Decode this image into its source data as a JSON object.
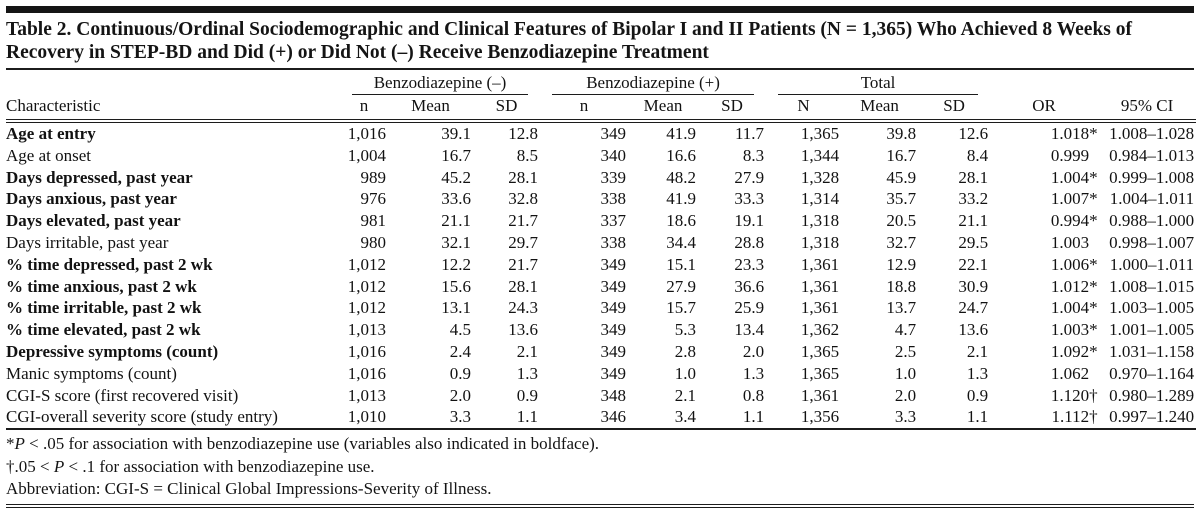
{
  "title": "Table 2. Continuous/Ordinal Sociodemographic and Clinical Features of Bipolar I and II Patients (N = 1,365) Who Achieved 8 Weeks of Recovery in STEP-BD and Did (+) or Did Not (–) Receive Benzodiazepine Treatment",
  "table": {
    "groups": [
      {
        "label": "Benzodiazepine (–)"
      },
      {
        "label": "Benzodiazepine (+)"
      },
      {
        "label": "Total"
      }
    ],
    "columns": [
      "Characteristic",
      "n",
      "Mean",
      "SD",
      "n",
      "Mean",
      "SD",
      "N",
      "Mean",
      "SD",
      "OR",
      "95% CI"
    ],
    "rows": [
      {
        "label": "Age at entry",
        "bold": true,
        "values": [
          "1,016",
          "39.1",
          "12.8",
          "349",
          "41.9",
          "11.7",
          "1,365",
          "39.8",
          "12.6"
        ],
        "or": "1.018",
        "or_mark": "*",
        "ci": "1.008–1.028"
      },
      {
        "label": "Age at onset",
        "bold": false,
        "values": [
          "1,004",
          "16.7",
          "8.5",
          "340",
          "16.6",
          "8.3",
          "1,344",
          "16.7",
          "8.4"
        ],
        "or": "0.999",
        "or_mark": "",
        "ci": "0.984–1.013"
      },
      {
        "label": "Days depressed, past year",
        "bold": true,
        "values": [
          "989",
          "45.2",
          "28.1",
          "339",
          "48.2",
          "27.9",
          "1,328",
          "45.9",
          "28.1"
        ],
        "or": "1.004",
        "or_mark": "*",
        "ci": "0.999–1.008"
      },
      {
        "label": "Days anxious, past year",
        "bold": true,
        "values": [
          "976",
          "33.6",
          "32.8",
          "338",
          "41.9",
          "33.3",
          "1,314",
          "35.7",
          "33.2"
        ],
        "or": "1.007",
        "or_mark": "*",
        "ci": "1.004–1.011"
      },
      {
        "label": "Days elevated, past year",
        "bold": true,
        "values": [
          "981",
          "21.1",
          "21.7",
          "337",
          "18.6",
          "19.1",
          "1,318",
          "20.5",
          "21.1"
        ],
        "or": "0.994",
        "or_mark": "*",
        "ci": "0.988–1.000"
      },
      {
        "label": "Days irritable, past year",
        "bold": false,
        "values": [
          "980",
          "32.1",
          "29.7",
          "338",
          "34.4",
          "28.8",
          "1,318",
          "32.7",
          "29.5"
        ],
        "or": "1.003",
        "or_mark": "",
        "ci": "0.998–1.007"
      },
      {
        "label": "% time depressed, past 2 wk",
        "bold": true,
        "values": [
          "1,012",
          "12.2",
          "21.7",
          "349",
          "15.1",
          "23.3",
          "1,361",
          "12.9",
          "22.1"
        ],
        "or": "1.006",
        "or_mark": "*",
        "ci": "1.000–1.011"
      },
      {
        "label": "% time anxious, past 2 wk",
        "bold": true,
        "values": [
          "1,012",
          "15.6",
          "28.1",
          "349",
          "27.9",
          "36.6",
          "1,361",
          "18.8",
          "30.9"
        ],
        "or": "1.012",
        "or_mark": "*",
        "ci": "1.008–1.015"
      },
      {
        "label": "% time irritable, past 2 wk",
        "bold": true,
        "values": [
          "1,012",
          "13.1",
          "24.3",
          "349",
          "15.7",
          "25.9",
          "1,361",
          "13.7",
          "24.7"
        ],
        "or": "1.004",
        "or_mark": "*",
        "ci": "1.003–1.005"
      },
      {
        "label": "% time elevated, past 2 wk",
        "bold": true,
        "values": [
          "1,013",
          "4.5",
          "13.6",
          "349",
          "5.3",
          "13.4",
          "1,362",
          "4.7",
          "13.6"
        ],
        "or": "1.003",
        "or_mark": "*",
        "ci": "1.001–1.005"
      },
      {
        "label": "Depressive symptoms (count)",
        "bold": true,
        "values": [
          "1,016",
          "2.4",
          "2.1",
          "349",
          "2.8",
          "2.0",
          "1,365",
          "2.5",
          "2.1"
        ],
        "or": "1.092",
        "or_mark": "*",
        "ci": "1.031–1.158"
      },
      {
        "label": "Manic symptoms (count)",
        "bold": false,
        "values": [
          "1,016",
          "0.9",
          "1.3",
          "349",
          "1.0",
          "1.3",
          "1,365",
          "1.0",
          "1.3"
        ],
        "or": "1.062",
        "or_mark": "",
        "ci": "0.970–1.164"
      },
      {
        "label": "CGI-S score (first recovered visit)",
        "bold": false,
        "values": [
          "1,013",
          "2.0",
          "0.9",
          "348",
          "2.1",
          "0.8",
          "1,361",
          "2.0",
          "0.9"
        ],
        "or": "1.120",
        "or_mark": "†",
        "ci": "0.980–1.289"
      },
      {
        "label": "CGI-overall severity score (study entry)",
        "bold": false,
        "values": [
          "1,010",
          "3.3",
          "1.1",
          "346",
          "3.4",
          "1.1",
          "1,356",
          "3.3",
          "1.1"
        ],
        "or": "1.112",
        "or_mark": "†",
        "ci": "0.997–1.240"
      }
    ]
  },
  "footnotes": [
    {
      "prefix": "*",
      "italic": "P",
      "suffix": " < .05 for association with benzodiazepine use (variables also indicated in boldface)."
    },
    {
      "prefix": "†.05 < ",
      "italic": "P",
      "suffix": " < .1 for association with benzodiazepine use."
    },
    {
      "prefix": "Abbreviation: CGI-S = Clinical Global Impressions-Severity of Illness.",
      "italic": "",
      "suffix": ""
    }
  ]
}
